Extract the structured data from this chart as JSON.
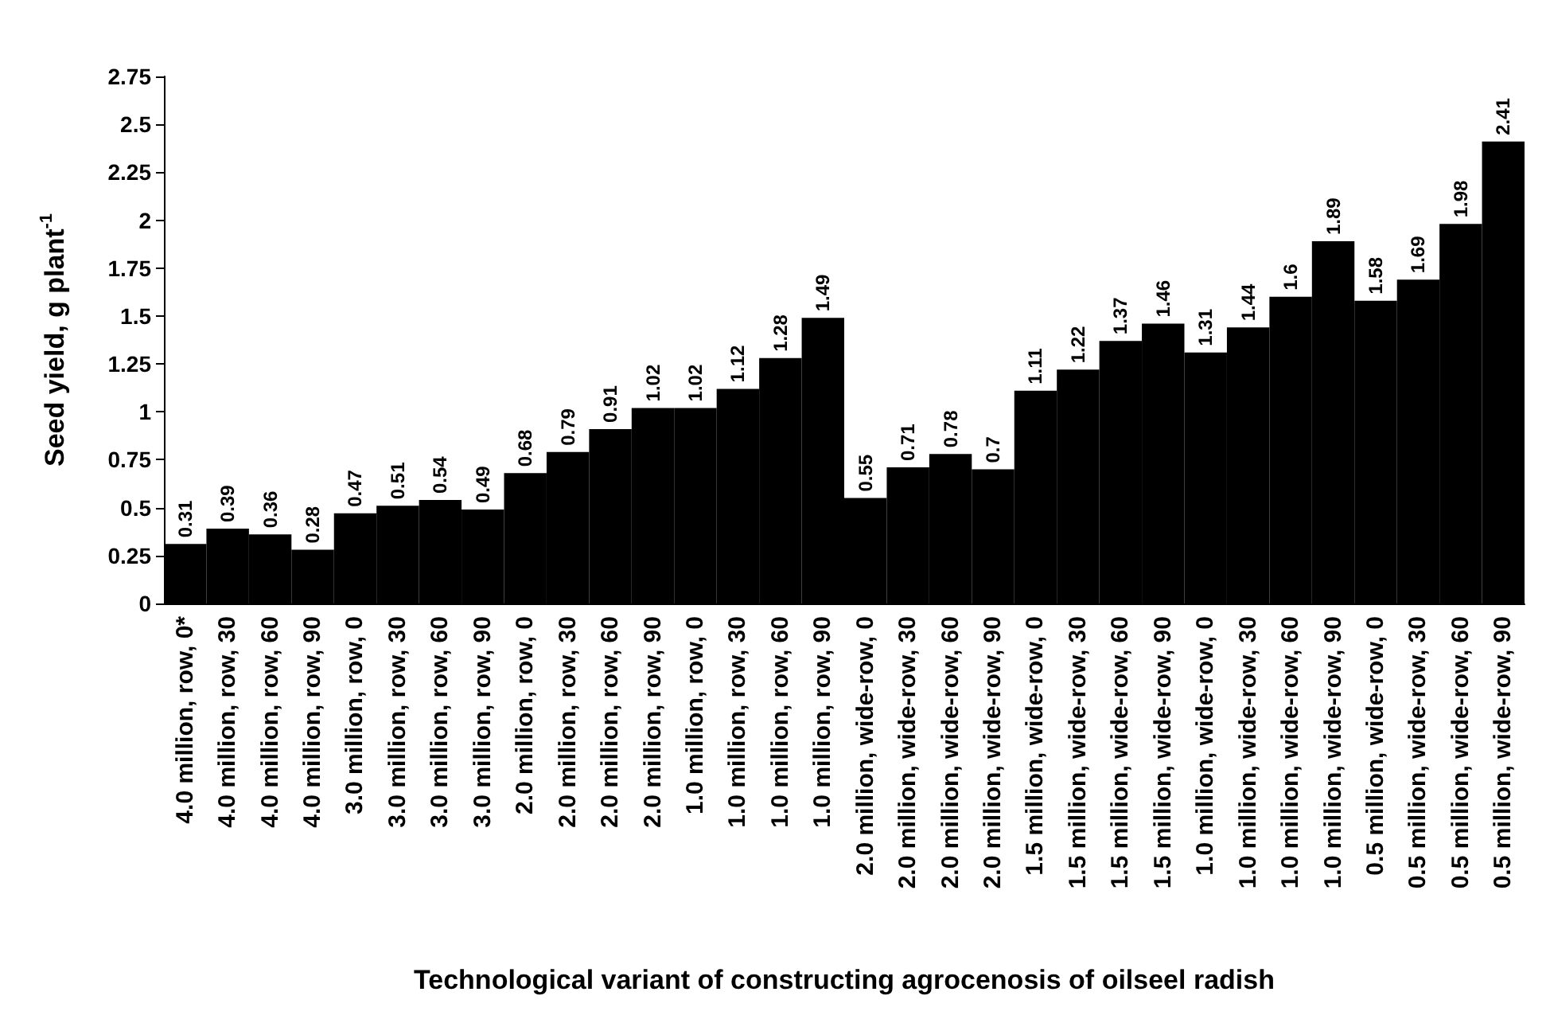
{
  "chart_data": {
    "type": "bar",
    "xlabel": "Technological variant of constructing agrocenosis of oilseel radish",
    "ylabel": "Seed yield, g plant$^{-1}$",
    "categories": [
      "4.0 million, row, 0*",
      "4.0 million, row, 30",
      "4.0 million, row, 60",
      "4.0 million, row, 90",
      "3.0 million, row, 0",
      "3.0 million, row, 30",
      "3.0 million, row, 60",
      "3.0 million, row, 90",
      "2.0 million, row, 0",
      "2.0 million, row, 30",
      "2.0 million, row, 60",
      "2.0 million, row, 90",
      "1.0 million, row, 0",
      "1.0 million, row, 30",
      "1.0 million, row, 60",
      "1.0 million, row, 90",
      "2.0 million, wide-row, 0",
      "2.0 million, wide-row, 30",
      "2.0 million, wide-row, 60",
      "2.0 million, wide-row, 90",
      "1.5 million, wide-row, 0",
      "1.5 million, wide-row, 30",
      "1.5 million, wide-row, 60",
      "1.5 million, wide-row, 90",
      "1.0 million, wide-row, 0",
      "1.0 million, wide-row, 30",
      "1.0 million, wide-row, 60",
      "1.0 million, wide-row, 90",
      "0.5 million, wide-row, 0",
      "0.5 million, wide-row, 30",
      "0.5 million, wide-row, 60",
      "0.5 million, wide-row, 90"
    ],
    "values": [
      0.31,
      0.39,
      0.36,
      0.28,
      0.47,
      0.51,
      0.54,
      0.49,
      0.68,
      0.79,
      0.91,
      1.02,
      1.02,
      1.12,
      1.28,
      1.49,
      0.55,
      0.71,
      0.78,
      0.7,
      1.11,
      1.22,
      1.37,
      1.46,
      1.31,
      1.44,
      1.6,
      1.89,
      1.58,
      1.69,
      1.98,
      2.41
    ],
    "color": "#000000",
    "ylim": [
      0,
      2.75
    ],
    "yticks": [
      0,
      0.25,
      0.5,
      0.75,
      1,
      1.25,
      1.5,
      1.75,
      2,
      2.25,
      2.5,
      2.75
    ],
    "grid": false,
    "data_labels": true
  }
}
